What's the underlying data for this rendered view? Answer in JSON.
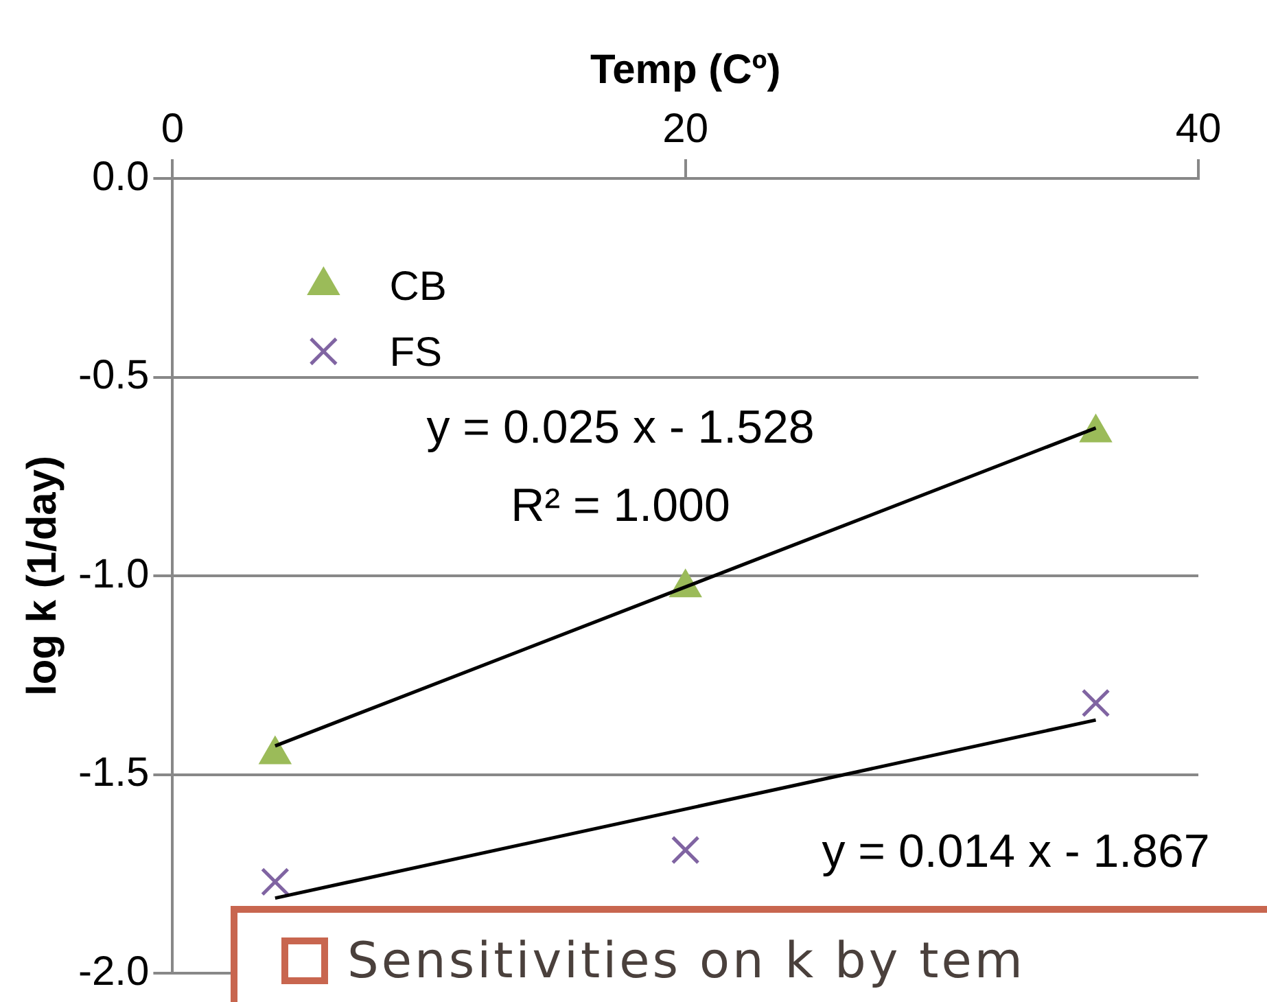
{
  "chart_data": {
    "type": "scatter",
    "xlabel": "Temp (Cº)",
    "ylabel": "log k (1/day)",
    "xlim": [
      0,
      40
    ],
    "xticks": [
      0,
      20,
      40
    ],
    "ylim": [
      -2,
      0
    ],
    "yticks": [
      {
        "value": -2,
        "label": "-2.0"
      },
      {
        "value": -1.5,
        "label": "-1.5"
      },
      {
        "value": -1,
        "label": "-1.0"
      },
      {
        "value": -0.5,
        "label": "-0.5"
      },
      {
        "value": 0,
        "label": "0.0"
      }
    ],
    "grid": "y",
    "legend": "top left",
    "series": [
      {
        "name": "CB",
        "marker": "triangle",
        "color": "#9bbb59",
        "x": [
          4,
          20,
          36
        ],
        "values": [
          -1.45,
          -1.03,
          -0.64
        ]
      },
      {
        "name": "FS",
        "marker": "cross",
        "color": "#8064a2",
        "x": [
          4,
          20,
          36
        ],
        "values": [
          -1.77,
          -1.69,
          -1.32
        ]
      },
      {
        "type": "line",
        "marker": "none",
        "color": "#000000",
        "x": [
          4,
          36
        ],
        "values": [
          -1.428,
          -0.628
        ]
      },
      {
        "type": "line",
        "marker": "none",
        "color": "#000000",
        "x": [
          4,
          36
        ],
        "values": [
          -1.811,
          -1.363
        ]
      }
    ],
    "annotations": [
      "y = 0.025 x - 1.528",
      "R² = 1.000",
      "y = 0.014 x - 1.867",
      "Sensitivities on k by tem"
    ]
  }
}
